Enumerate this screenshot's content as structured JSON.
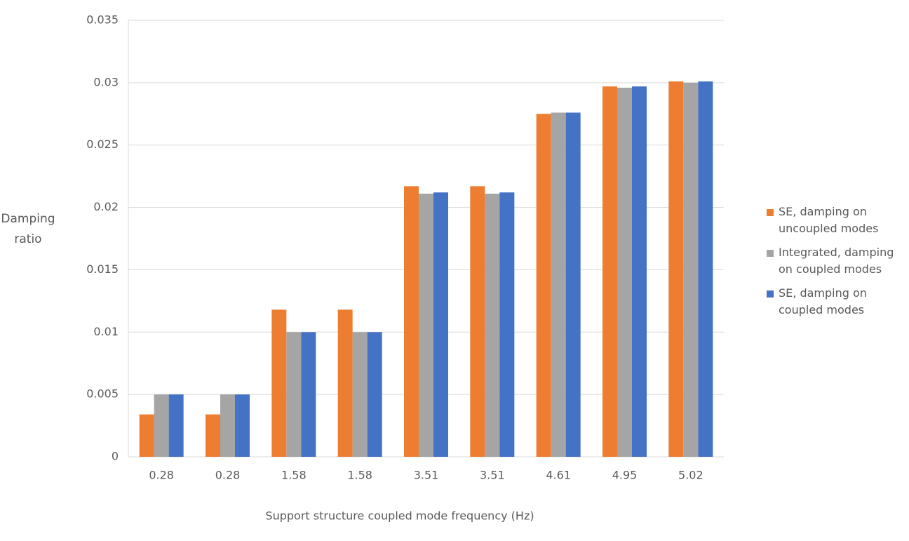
{
  "chart_data": {
    "type": "bar",
    "y_label": "Damping ratio",
    "x_label": "Support structure coupled mode frequency (Hz)",
    "categories": [
      "0.28",
      "0.28",
      "1.58",
      "1.58",
      "3.51",
      "3.51",
      "4.61",
      "4.95",
      "5.02"
    ],
    "series": [
      {
        "name": "SE, damping on uncoupled modes",
        "color": "#ed7d31",
        "values": [
          0.0034,
          0.0034,
          0.0118,
          0.0118,
          0.0217,
          0.0217,
          0.0275,
          0.0297,
          0.0301
        ]
      },
      {
        "name": "Integrated, damping on coupled modes",
        "color": "#a5a5a5",
        "values": [
          0.005,
          0.005,
          0.01,
          0.01,
          0.0211,
          0.0211,
          0.0276,
          0.0296,
          0.03
        ]
      },
      {
        "name": "SE, damping on coupled modes",
        "color": "#4472c4",
        "values": [
          0.005,
          0.005,
          0.01,
          0.01,
          0.0212,
          0.0212,
          0.0276,
          0.0297,
          0.0301
        ]
      }
    ],
    "ylim": [
      0,
      0.035
    ],
    "yticks": [
      0,
      0.005,
      0.01,
      0.015,
      0.02,
      0.025,
      0.03,
      0.035
    ],
    "grid": true,
    "legend": "right"
  }
}
